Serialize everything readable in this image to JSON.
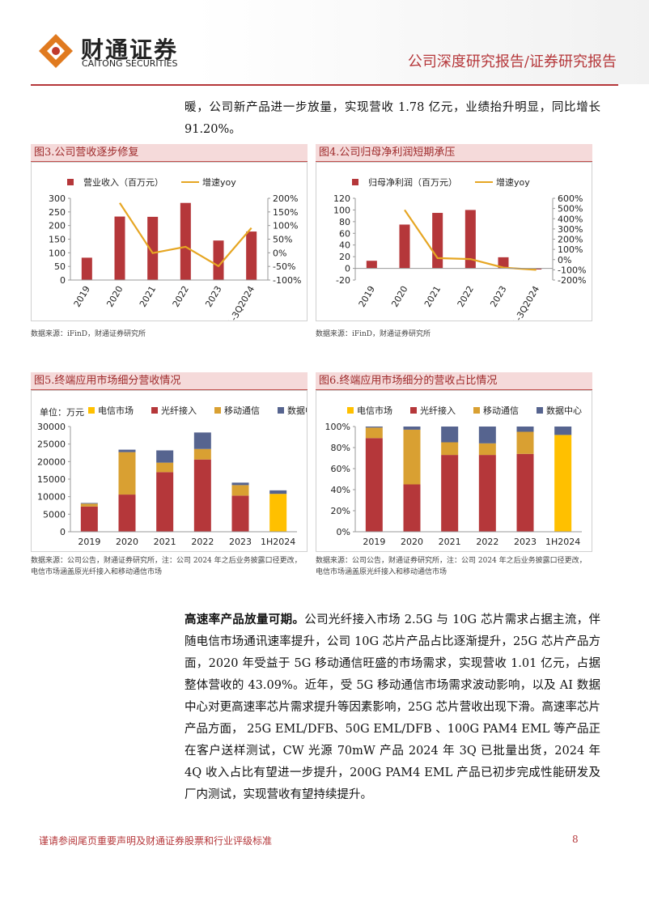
{
  "header": {
    "logo_cn": "财通证券",
    "logo_en": "CAITONG SECURITIES",
    "report_type": "公司深度研究报告/证券研究报告"
  },
  "paragraphs": [
    {
      "text": "暖，公司新产品进一步放量，实现营收 1.78 亿元，业绩抬升明显，同比增长 91.20%。"
    },
    {
      "lead": "高速率产品放量可期。",
      "text": "公司光纤接入市场 2.5G 与 10G 芯片需求占据主流，伴随电信市场通讯速率提升，公司 10G 芯片产品占比逐渐提升，25G 芯片产品方面，2020 年受益于 5G 移动通信旺盛的市场需求，实现营收 1.01 亿元，占据整体营收的 43.09%。近年，受 5G 移动通信市场需求波动影响，以及 AI 数据中心对更高速率芯片需求提升等因素影响，25G 芯片营收出现下滑。高速率芯片产品方面， 25G EML/DFB、50G EML/DFB 、100G PAM4 EML 等产品正在客户送样测试，CW 光源 70mW 产品 2024 年 3Q 已批量出货，2024 年 4Q 收入占比有望进一步提升，200G PAM4 EML 产品已初步完成性能研发及厂内测试，实现营收有望持续提升。"
    }
  ],
  "chart_data": [
    {
      "type": "bar_line",
      "title": "图3.公司营收逐步修复",
      "source": "数据来源：iFinD，财通证券研究所",
      "categories": [
        "2019",
        "2020",
        "2021",
        "2022",
        "2023",
        "1-3Q2024"
      ],
      "series": [
        {
          "name": "营业收入（百万元）",
          "type": "bar",
          "color": "#b5373a",
          "values": [
            82,
            233,
            232,
            283,
            145,
            178
          ]
        },
        {
          "name": "增速yoy",
          "type": "line",
          "axis": "y2",
          "color": "#e6a623",
          "values": [
            null,
            183,
            -1,
            22,
            -49,
            91.2
          ]
        }
      ],
      "ylim": [
        0,
        300
      ],
      "yticks": [
        0,
        50,
        100,
        150,
        200,
        250,
        300
      ],
      "y2lim": [
        -100,
        200
      ],
      "y2ticks": [
        {
          "value": -100,
          "label": "-100%"
        },
        {
          "value": -50,
          "label": "-50%"
        },
        {
          "value": 0,
          "label": "0%"
        },
        {
          "value": 50,
          "label": "50%"
        },
        {
          "value": 100,
          "label": "100%"
        },
        {
          "value": 150,
          "label": "150%"
        },
        {
          "value": 200,
          "label": "200%"
        }
      ]
    },
    {
      "type": "bar_line",
      "title": "图4.公司归母净利润短期承压",
      "source": "数据来源：iFinD，财通证券研究所",
      "categories": [
        "2019",
        "2020",
        "2021",
        "2022",
        "2023",
        "1-3Q2024"
      ],
      "series": [
        {
          "name": "归母净利润（百万元）",
          "type": "bar",
          "color": "#b5373a",
          "values": [
            13,
            75,
            95,
            100,
            19,
            -2
          ]
        },
        {
          "name": "增速yoy",
          "type": "line",
          "axis": "y2",
          "color": "#e6a623",
          "values": [
            null,
            486,
            15,
            5,
            -78,
            -100
          ]
        }
      ],
      "ylim": [
        -20,
        120
      ],
      "yticks": [
        -20,
        0,
        20,
        40,
        60,
        80,
        100,
        120
      ],
      "y2lim": [
        -200,
        600
      ],
      "y2ticks": [
        {
          "value": -200,
          "label": "-200%"
        },
        {
          "value": -100,
          "label": "-100%"
        },
        {
          "value": 0,
          "label": "0%"
        },
        {
          "value": 100,
          "label": "100%"
        },
        {
          "value": 200,
          "label": "200%"
        },
        {
          "value": 300,
          "label": "300%"
        },
        {
          "value": 400,
          "label": "400%"
        },
        {
          "value": 500,
          "label": "500%"
        },
        {
          "value": 600,
          "label": "600%"
        }
      ]
    },
    {
      "type": "stacked_bar",
      "title": "图5.终端应用市场细分营收情况",
      "unit": "单位：万元",
      "source": "数据来源：公司公告，财通证券研究所，注：公司 2024 年之后业务披露口径更改，电信市场涵盖原光纤接入和移动通信市场",
      "categories": [
        "2019",
        "2020",
        "2021",
        "2022",
        "2023",
        "1H2024"
      ],
      "series": [
        {
          "name": "电信市场",
          "color": "#ffc000",
          "values": [
            0,
            0,
            0,
            0,
            0,
            10800
          ]
        },
        {
          "name": "光纤接入",
          "color": "#b5373a",
          "values": [
            7200,
            10600,
            17000,
            20600,
            10300,
            0
          ]
        },
        {
          "name": "移动通信",
          "color": "#d9a032",
          "values": [
            800,
            12100,
            2700,
            3000,
            3000,
            0
          ]
        },
        {
          "name": "数据中心",
          "color": "#56648f",
          "values": [
            200,
            700,
            3500,
            4700,
            700,
            1000
          ]
        }
      ],
      "ylim": [
        0,
        30000
      ],
      "yticks": [
        0,
        5000,
        10000,
        15000,
        20000,
        25000,
        30000
      ]
    },
    {
      "type": "stacked_bar",
      "title": "图6.终端应用市场细分的营收占比情况",
      "source": "数据来源：公司公告，财通证券研究所，注：公司 2024 年之后业务披露口径更改，电信市场涵盖原光纤接入和移动通信市场",
      "categories": [
        "2019",
        "2020",
        "2021",
        "2022",
        "2023",
        "1H2024"
      ],
      "series": [
        {
          "name": "电信市场",
          "color": "#ffc000",
          "values": [
            0,
            0,
            0,
            0,
            0,
            92
          ]
        },
        {
          "name": "光纤接入",
          "color": "#b5373a",
          "values": [
            89,
            45,
            73,
            73,
            74,
            0
          ]
        },
        {
          "name": "移动通信",
          "color": "#d9a032",
          "values": [
            10,
            52,
            12,
            11,
            21,
            0
          ]
        },
        {
          "name": "数据中心",
          "color": "#56648f",
          "values": [
            1,
            3,
            15,
            16,
            5,
            8
          ]
        }
      ],
      "ylim": [
        0,
        100
      ],
      "yticks": [
        {
          "value": 0,
          "label": "0%"
        },
        {
          "value": 20,
          "label": "20%"
        },
        {
          "value": 40,
          "label": "40%"
        },
        {
          "value": 60,
          "label": "60%"
        },
        {
          "value": 80,
          "label": "80%"
        },
        {
          "value": 100,
          "label": "100%"
        }
      ]
    }
  ],
  "footer": {
    "disclaimer": "谨请参阅尾页重要声明及财通证券股票和行业评级标准",
    "page": "8"
  }
}
